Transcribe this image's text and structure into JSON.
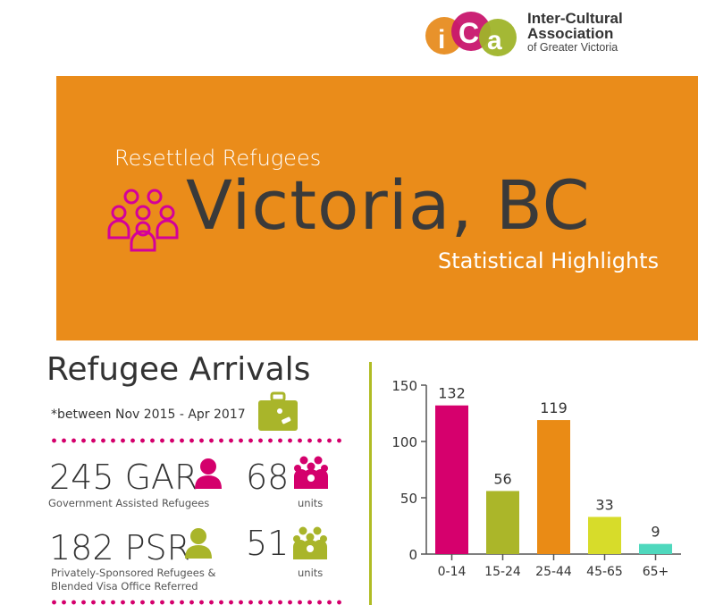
{
  "logo": {
    "line1": "Inter-Cultural",
    "line2": "Association",
    "line3": "of Greater Victoria",
    "letters": "iCa",
    "colors": [
      "#e8922b",
      "#c8166e",
      "#9fb42a"
    ]
  },
  "banner": {
    "subtitle_top": "Resettled Refugees",
    "title": "Victoria, BC",
    "subtitle_bottom": "Statistical Highlights",
    "background": "#ea8c1a",
    "icon": "people-group-icon"
  },
  "arrivals": {
    "title": "Refugee Arrivals",
    "period": "*between Nov 2015 - Apr 2017",
    "icon": "suitcase-icon",
    "gar": {
      "count": "245 GAR",
      "label": "Government Assisted Refugees",
      "units": "68",
      "units_label": "units",
      "color": "#d4006c"
    },
    "psr": {
      "count": "182 PSR",
      "label_line1": "Privately-Sponsored Refugees &",
      "label_line2": "Blended Visa Office Referred",
      "units": "51",
      "units_label": "units",
      "color": "#a9b52a"
    }
  },
  "chart_data": {
    "type": "bar",
    "categories": [
      "0-14",
      "15-24",
      "25-44",
      "45-65",
      "65+"
    ],
    "values": [
      132,
      56,
      119,
      33,
      9
    ],
    "colors": [
      "#d6006d",
      "#abb629",
      "#ea8b15",
      "#d7dc2a",
      "#4fd8bd"
    ],
    "ylim": [
      0,
      150
    ],
    "yticks": [
      0,
      50,
      100,
      150
    ],
    "grid": false
  }
}
